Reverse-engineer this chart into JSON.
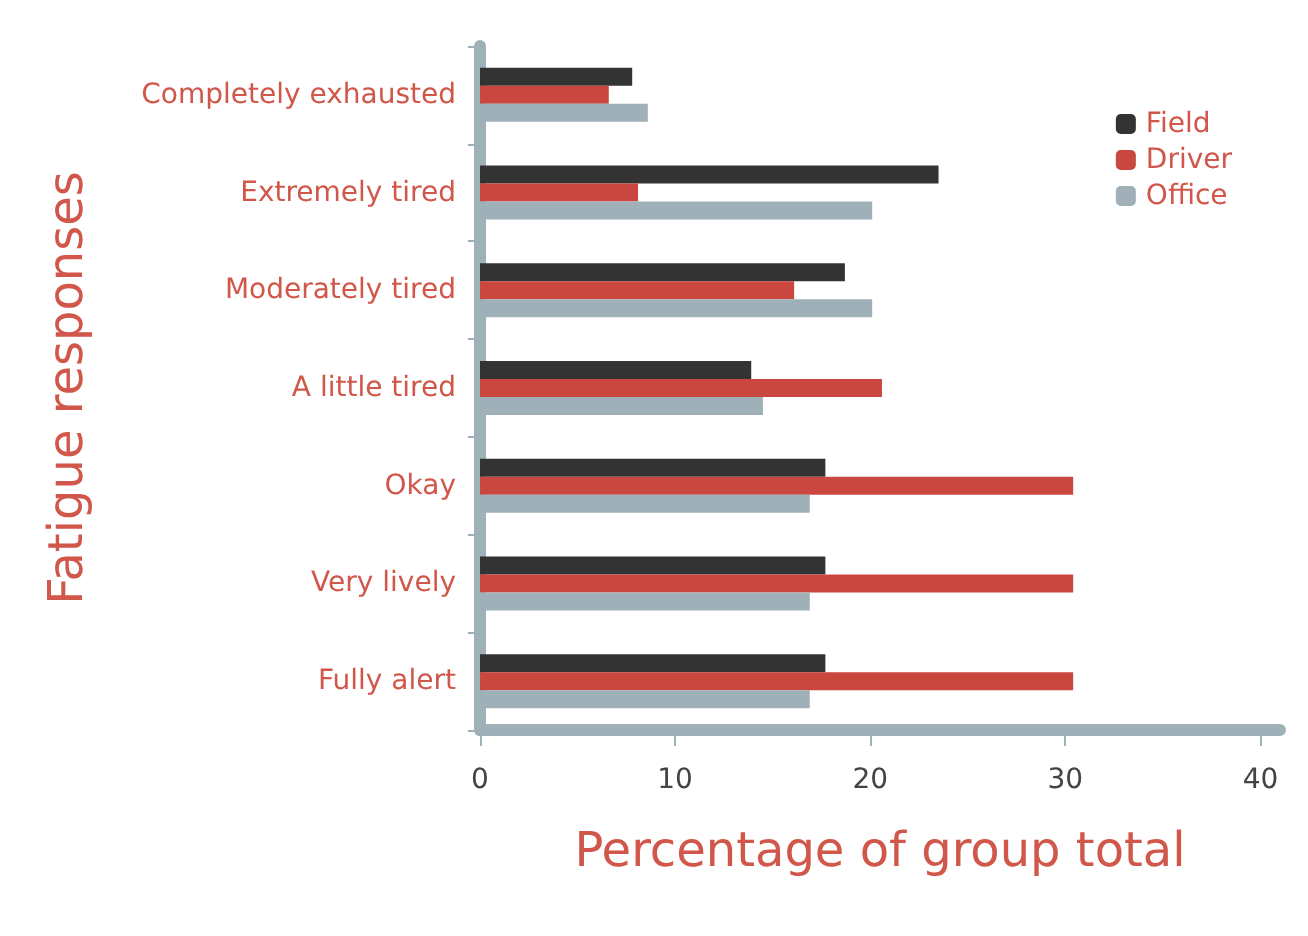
{
  "chart_data": {
    "type": "bar",
    "orientation": "horizontal",
    "xlabel": "Percentage of group total",
    "ylabel": "Fatigue responses",
    "categories": [
      "Completely exhausted",
      "Extremely tired",
      "Moderately tired",
      "A little tired",
      "Okay",
      "Very lively",
      "Fully alert"
    ],
    "series": [
      {
        "name": "Field",
        "color": "#333333",
        "values": [
          7.8,
          23.5,
          18.7,
          13.9,
          17.7,
          17.7,
          17.7
        ]
      },
      {
        "name": "Driver",
        "color": "#c9473f",
        "values": [
          6.6,
          8.1,
          16.1,
          20.6,
          30.4,
          30.4,
          30.4
        ]
      },
      {
        "name": "Office",
        "color": "#9fb0b8",
        "values": [
          8.6,
          20.1,
          20.1,
          14.5,
          16.9,
          16.9,
          16.9
        ]
      }
    ],
    "xlim": [
      0,
      41
    ],
    "xticks": [
      0,
      10,
      20,
      30,
      40
    ],
    "grid": false,
    "legend": "top right"
  }
}
